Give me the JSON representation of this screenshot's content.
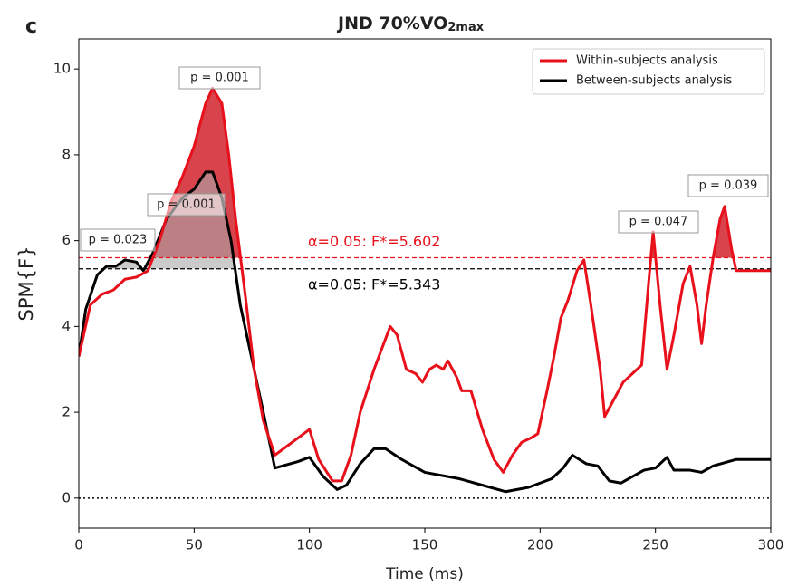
{
  "chart_data": {
    "type": "line",
    "panel_label": "c",
    "title": "JND 70%VO",
    "title_subscript": "2max",
    "xlabel": "Time (ms)",
    "ylabel": "SPM{F}",
    "xlim": [
      0,
      300
    ],
    "ylim": [
      -0.7,
      10.7
    ],
    "xticks": [
      0,
      50,
      100,
      150,
      200,
      250,
      300
    ],
    "yticks": [
      0,
      2,
      4,
      6,
      8,
      10
    ],
    "zero_line": true,
    "legend": "upper right",
    "series": [
      {
        "name": "Within-subjects analysis",
        "color": "#e8101a",
        "threshold": 5.602,
        "threshold_label": "α=0.05:  F*=5.602",
        "fill": "#d0141e",
        "x": [
          0,
          5,
          10,
          15,
          20,
          25,
          30,
          35,
          40,
          45,
          50,
          55,
          58,
          62,
          65,
          68,
          72,
          76,
          80,
          85,
          90,
          95,
          100,
          104,
          110,
          114,
          118,
          122,
          128,
          135,
          138,
          142,
          146,
          149,
          152,
          155,
          158,
          160,
          164,
          166,
          170,
          175,
          180,
          184,
          188,
          192,
          196,
          199,
          203,
          206,
          209,
          212,
          216,
          219,
          222,
          226,
          228,
          232,
          236,
          240,
          244,
          247,
          249,
          252,
          255,
          258,
          262,
          265,
          268,
          270,
          272,
          275,
          278,
          280,
          283,
          285,
          290,
          300
        ],
        "values": [
          3.3,
          4.5,
          4.75,
          4.85,
          5.1,
          5.15,
          5.3,
          6.0,
          6.9,
          7.5,
          8.2,
          9.2,
          9.55,
          9.2,
          8.0,
          6.5,
          4.8,
          3.0,
          1.8,
          1.0,
          1.2,
          1.4,
          1.6,
          0.9,
          0.4,
          0.4,
          1.0,
          2.0,
          3.0,
          4.0,
          3.8,
          3.0,
          2.9,
          2.7,
          3.0,
          3.1,
          3.0,
          3.2,
          2.8,
          2.5,
          2.5,
          1.6,
          0.9,
          0.6,
          1.0,
          1.3,
          1.4,
          1.5,
          2.5,
          3.3,
          4.2,
          4.6,
          5.3,
          5.55,
          4.5,
          3.0,
          1.9,
          2.3,
          2.7,
          2.9,
          3.1,
          5.0,
          6.2,
          4.5,
          3.0,
          3.8,
          5.0,
          5.4,
          4.5,
          3.6,
          4.5,
          5.6,
          6.5,
          6.8,
          5.8,
          5.3,
          5.3,
          5.3
        ]
      },
      {
        "name": "Between-subjects analysis",
        "color": "#000000",
        "threshold": 5.343,
        "threshold_label": "α=0.05:  F*=5.343",
        "fill": "#a8a8a8",
        "x": [
          0,
          3,
          8,
          12,
          16,
          20,
          25,
          28,
          32,
          38,
          45,
          50,
          55,
          58,
          62,
          66,
          70,
          74,
          80,
          85,
          95,
          100,
          106,
          112,
          116,
          122,
          128,
          133,
          140,
          150,
          165,
          175,
          185,
          195,
          205,
          210,
          214,
          220,
          225,
          230,
          235,
          240,
          245,
          250,
          255,
          258,
          265,
          270,
          275,
          285,
          300
        ],
        "values": [
          3.3,
          4.4,
          5.2,
          5.4,
          5.4,
          5.55,
          5.5,
          5.3,
          5.7,
          6.5,
          7.0,
          7.2,
          7.6,
          7.6,
          7.0,
          6.0,
          4.5,
          3.5,
          2.0,
          0.7,
          0.85,
          0.95,
          0.5,
          0.2,
          0.3,
          0.8,
          1.15,
          1.15,
          0.9,
          0.6,
          0.45,
          0.3,
          0.15,
          0.25,
          0.45,
          0.7,
          1.0,
          0.8,
          0.75,
          0.4,
          0.35,
          0.5,
          0.65,
          0.7,
          0.95,
          0.65,
          0.65,
          0.6,
          0.75,
          0.9,
          0.9
        ]
      }
    ],
    "annotations": [
      "p = 0.023",
      "p = 0.001",
      "p = 0.001",
      "p = 0.047",
      "p = 0.039"
    ]
  }
}
